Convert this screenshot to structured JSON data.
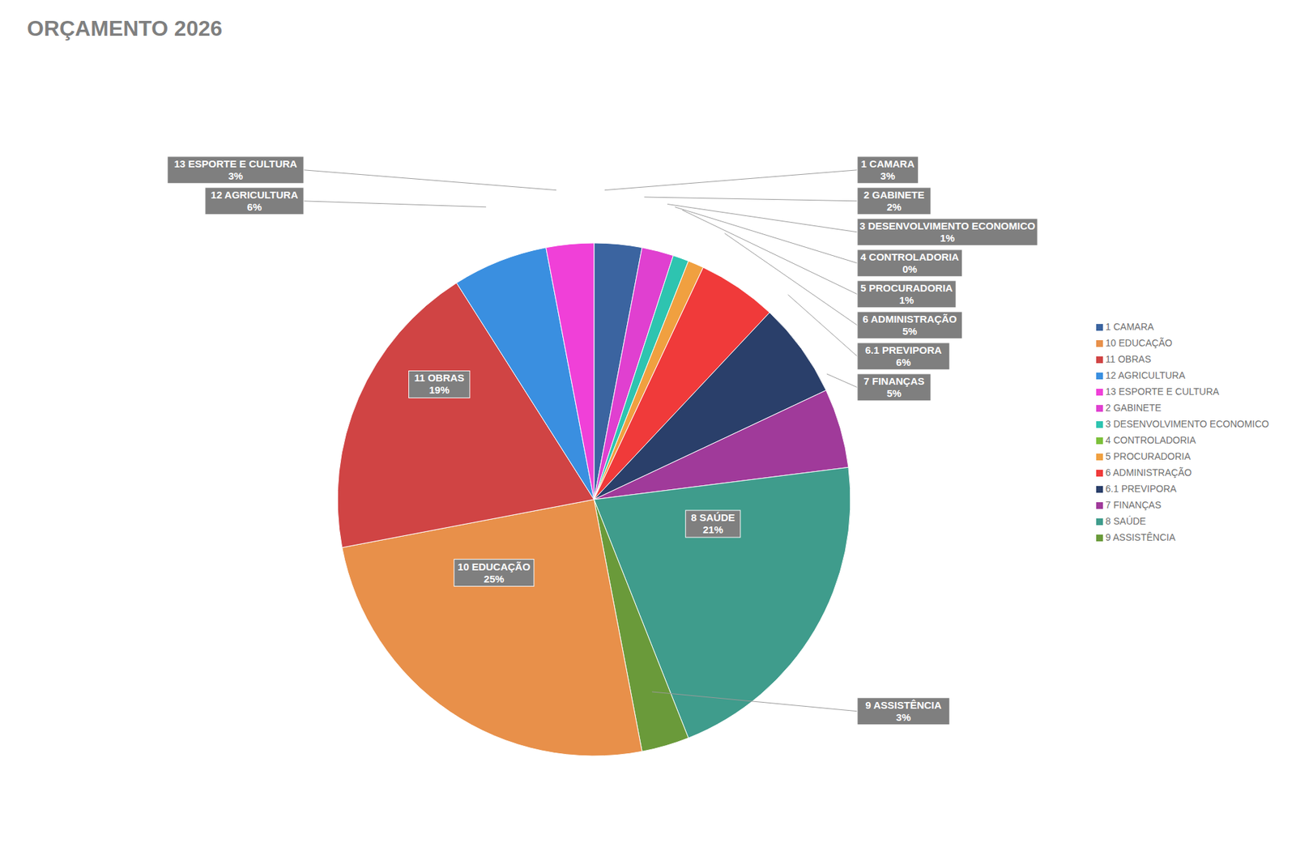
{
  "chart_data": {
    "type": "pie",
    "title": "ORÇAMENTO 2026",
    "categories": [
      "1 CAMARA",
      "2 GABINETE",
      "3 DESENVOLVIMENTO ECONOMICO",
      "4 CONTROLADORIA",
      "5 PROCURADORIA",
      "6 ADMINISTRAÇÃO",
      "6.1 PREVIPORA",
      "7 FINANÇAS",
      "8 SAÚDE",
      "9 ASSISTÊNCIA",
      "10 EDUCAÇÃO",
      "11 OBRAS",
      "12 AGRICULTURA",
      "13 ESPORTE E CULTURA"
    ],
    "values": [
      3,
      2,
      1,
      0,
      1,
      5,
      6,
      5,
      21,
      3,
      25,
      19,
      6,
      3
    ],
    "value_labels": [
      "3%",
      "2%",
      "1%",
      "0%",
      "1%",
      "5%",
      "6%",
      "5%",
      "21%",
      "3%",
      "25%",
      "19%",
      "6%",
      "3%"
    ],
    "colors": [
      "#3b64a0",
      "#e040d0",
      "#2ec4b0",
      "#7cc03a",
      "#f0a040",
      "#f03a3a",
      "#2a3f6a",
      "#a03a9a",
      "#3f9c8c",
      "#6a9a3a",
      "#e8904a",
      "#d04444",
      "#3a8fe0",
      "#f040d8"
    ],
    "data_labels": true,
    "legend": "right"
  }
}
